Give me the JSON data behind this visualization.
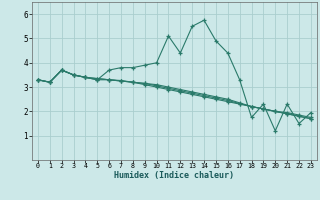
{
  "xlabel": "Humidex (Indice chaleur)",
  "ylabel": "",
  "bg_color": "#cce8e8",
  "grid_color": "#aacece",
  "line_color": "#2a7a6a",
  "xlim": [
    -0.5,
    23.5
  ],
  "ylim": [
    0.0,
    6.5
  ],
  "xticks": [
    0,
    1,
    2,
    3,
    4,
    5,
    6,
    7,
    8,
    9,
    10,
    11,
    12,
    13,
    14,
    15,
    16,
    17,
    18,
    19,
    20,
    21,
    22,
    23
  ],
  "yticks": [
    1,
    2,
    3,
    4,
    5,
    6
  ],
  "series": [
    [
      3.3,
      3.2,
      3.7,
      3.5,
      3.4,
      3.3,
      3.7,
      3.8,
      3.8,
      3.9,
      4.0,
      5.1,
      4.4,
      5.5,
      5.75,
      4.9,
      4.4,
      3.3,
      1.75,
      2.3,
      1.2,
      2.3,
      1.5,
      1.95
    ],
    [
      3.3,
      3.2,
      3.7,
      3.5,
      3.4,
      3.3,
      3.3,
      3.25,
      3.2,
      3.15,
      3.1,
      3.0,
      2.9,
      2.8,
      2.7,
      2.6,
      2.5,
      2.35,
      2.2,
      2.1,
      2.0,
      1.9,
      1.8,
      1.7
    ],
    [
      3.3,
      3.2,
      3.7,
      3.5,
      3.4,
      3.35,
      3.3,
      3.25,
      3.2,
      3.1,
      3.0,
      2.9,
      2.8,
      2.7,
      2.6,
      2.5,
      2.4,
      2.3,
      2.2,
      2.1,
      2.0,
      1.9,
      1.8,
      1.7
    ],
    [
      3.3,
      3.2,
      3.7,
      3.5,
      3.4,
      3.35,
      3.3,
      3.27,
      3.2,
      3.15,
      3.05,
      2.95,
      2.85,
      2.75,
      2.65,
      2.55,
      2.45,
      2.32,
      2.2,
      2.1,
      2.0,
      1.95,
      1.85,
      1.75
    ]
  ]
}
